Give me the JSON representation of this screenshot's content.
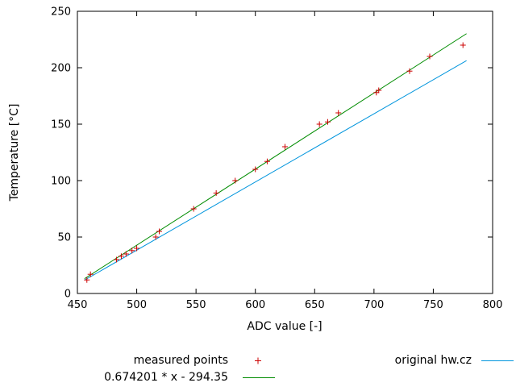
{
  "chart_data": {
    "type": "scatter",
    "title": "",
    "xlabel": "ADC value [-]",
    "ylabel": "Temperature [°C]",
    "xlim": [
      450,
      800
    ],
    "ylim": [
      0,
      250
    ],
    "xticks": [
      450,
      500,
      550,
      600,
      650,
      700,
      750,
      800
    ],
    "yticks": [
      0,
      50,
      100,
      150,
      200,
      250
    ],
    "grid": false,
    "legend_position": "below-plot",
    "series": [
      {
        "name": "measured points",
        "type": "points",
        "marker": "plus",
        "color": "#cc0000",
        "points": [
          [
            458,
            12
          ],
          [
            461,
            17
          ],
          [
            483,
            30
          ],
          [
            487,
            33
          ],
          [
            491,
            35
          ],
          [
            496,
            38
          ],
          [
            500,
            40
          ],
          [
            516,
            50
          ],
          [
            519,
            55
          ],
          [
            548,
            75
          ],
          [
            567,
            89
          ],
          [
            583,
            100
          ],
          [
            600,
            110
          ],
          [
            610,
            117
          ],
          [
            625,
            130
          ],
          [
            654,
            150
          ],
          [
            661,
            152
          ],
          [
            670,
            160
          ],
          [
            702,
            178
          ],
          [
            704,
            180
          ],
          [
            730,
            197
          ],
          [
            747,
            210
          ],
          [
            775,
            220
          ]
        ]
      },
      {
        "name": "0.674201 * x - 294.35",
        "type": "line",
        "color": "#008c00",
        "slope": 0.674201,
        "intercept": -294.35,
        "x1": 456,
        "y1": 13.09,
        "x2": 778,
        "y2": 230.18
      },
      {
        "name": "original hw.cz",
        "type": "line",
        "color": "#0095dd",
        "x1": 456,
        "y1": 11.8,
        "x2": 778,
        "y2": 206.3
      }
    ]
  },
  "legend": {
    "measured_label": "measured points",
    "fit_label": "0.674201 * x - 294.35",
    "original_label": "original hw.cz"
  }
}
